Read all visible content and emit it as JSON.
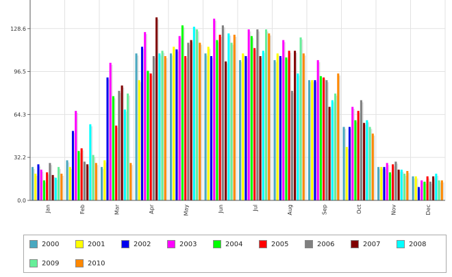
{
  "chart_data": {
    "type": "bar",
    "title": "",
    "xlabel": "",
    "ylabel": "",
    "ylim": [
      0,
      150
    ],
    "yticks": [
      0.0,
      32.2,
      64.3,
      96.5,
      128.6
    ],
    "ytick_labels": [
      "0.0",
      "32.2",
      "64.3",
      "96.5",
      "128.6"
    ],
    "grid": true,
    "legend_position": "bottom",
    "categories": [
      "Jan",
      "Feb",
      "Mar",
      "Apr",
      "May",
      "Jun",
      "Jul",
      "Aug",
      "Sep",
      "Oct",
      "Nov",
      "Dec"
    ],
    "series": [
      {
        "name": "2000",
        "color": "#4aa8c0",
        "values": [
          25,
          30,
          25,
          110,
          110,
          110,
          105,
          105,
          90,
          55,
          25,
          18
        ]
      },
      {
        "name": "2001",
        "color": "#ffff00",
        "values": [
          20,
          25,
          30,
          90,
          115,
          115,
          110,
          110,
          90,
          40,
          25,
          18
        ]
      },
      {
        "name": "2002",
        "color": "#0000ee",
        "values": [
          27,
          52,
          92,
          115,
          113,
          108,
          108,
          108,
          90,
          55,
          25,
          10
        ]
      },
      {
        "name": "2003",
        "color": "#ff00ff",
        "values": [
          23,
          67,
          103,
          126,
          123,
          136,
          128,
          120,
          105,
          70,
          28,
          15
        ]
      },
      {
        "name": "2004",
        "color": "#00ff00",
        "values": [
          15,
          37,
          78,
          97,
          131,
          120,
          123,
          107,
          93,
          60,
          21,
          14
        ]
      },
      {
        "name": "2005",
        "color": "#ff0000",
        "values": [
          21,
          39,
          56,
          95,
          108,
          124,
          114,
          112,
          92,
          67,
          27,
          18
        ]
      },
      {
        "name": "2006",
        "color": "#808080",
        "values": [
          28,
          29,
          82,
          108,
          118,
          131,
          128,
          82,
          90,
          75,
          29,
          14
        ]
      },
      {
        "name": "2007",
        "color": "#800000",
        "values": [
          19,
          27,
          86,
          137,
          120,
          104,
          108,
          112,
          70,
          58,
          23,
          18
        ]
      },
      {
        "name": "2008",
        "color": "#00ffff",
        "values": [
          17,
          57,
          68,
          110,
          130,
          125,
          112,
          95,
          75,
          60,
          23,
          20
        ]
      },
      {
        "name": "2009",
        "color": "#66ee99",
        "values": [
          25,
          34,
          80,
          112,
          128,
          118,
          128,
          122,
          80,
          55,
          20,
          15
        ]
      },
      {
        "name": "2010",
        "color": "#ff8800",
        "values": [
          20,
          28,
          28,
          108,
          118,
          124,
          125,
          110,
          95,
          50,
          22,
          15
        ]
      }
    ]
  }
}
